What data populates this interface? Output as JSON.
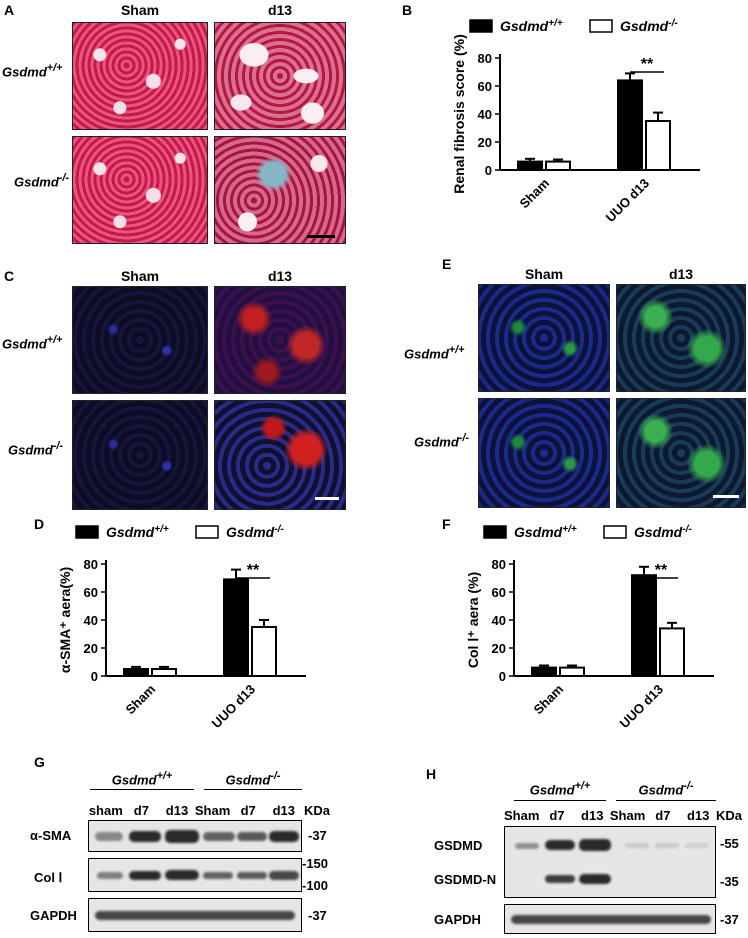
{
  "panels": {
    "A": {
      "label": "A",
      "col_headers": [
        "Sham",
        "d13"
      ],
      "row_labels": [
        "Gsdmd",
        "Gsdmd"
      ],
      "row_sup": [
        "+/+",
        "-/-"
      ]
    },
    "B": {
      "label": "B"
    },
    "C": {
      "label": "C",
      "col_headers": [
        "Sham",
        "d13"
      ],
      "row_labels": [
        "Gsdmd",
        "Gsdmd"
      ],
      "row_sup": [
        "+/+",
        "-/-"
      ]
    },
    "D": {
      "label": "D"
    },
    "E": {
      "label": "E",
      "col_headers": [
        "Sham",
        "d13"
      ],
      "row_labels": [
        "Gsdmd",
        "Gsdmd"
      ],
      "row_sup": [
        "+/+",
        "-/-"
      ]
    },
    "F": {
      "label": "F"
    },
    "G": {
      "label": "G",
      "group1": "Gsdmd",
      "group1_sup": "+/+",
      "group2": "Gsdmd",
      "group2_sup": "-/-",
      "lanes": [
        "sham",
        "d7",
        "d13",
        "Sham",
        "d7",
        "d13"
      ],
      "unit": "KDa",
      "rows": [
        {
          "name": "α-SMA",
          "mw": [
            "-37"
          ]
        },
        {
          "name": "Col  Ⅰ",
          "mw": [
            "-150",
            "-100"
          ]
        },
        {
          "name": "GAPDH",
          "mw": [
            "-37"
          ]
        }
      ]
    },
    "H": {
      "label": "H",
      "group1": "Gsdmd",
      "group1_sup": "+/+",
      "group2": "Gsdmd",
      "group2_sup": "-/-",
      "lanes": [
        "Sham",
        "d7",
        "d13",
        "Sham",
        "d7",
        "d13"
      ],
      "unit": "KDa",
      "rows": [
        {
          "name": "GSDMD",
          "mw": [
            "-55"
          ]
        },
        {
          "name": "GSDMD-N",
          "mw": [
            "-35"
          ]
        },
        {
          "name": "GAPDH",
          "mw": [
            "-37"
          ]
        }
      ]
    }
  },
  "chart_data": [
    {
      "panel": "B",
      "type": "bar",
      "categories": [
        "Sham",
        "UUO d13"
      ],
      "series": [
        {
          "name": "Gsdmd+/+",
          "values": [
            6,
            64
          ],
          "errors": [
            2,
            5
          ],
          "fill": "#000000"
        },
        {
          "name": "Gsdmd-/-",
          "values": [
            6,
            35
          ],
          "errors": [
            1.5,
            6
          ],
          "fill": "#ffffff"
        }
      ],
      "ylabel": "Renal fibrosis score (%)",
      "ylim": [
        0,
        80
      ],
      "yticks": [
        0,
        20,
        40,
        60,
        80
      ],
      "significance": "**",
      "legend": "top"
    },
    {
      "panel": "D",
      "type": "bar",
      "categories": [
        "Sham",
        "UUO d13"
      ],
      "series": [
        {
          "name": "Gsdmd+/+",
          "values": [
            5,
            69
          ],
          "errors": [
            1.5,
            7
          ],
          "fill": "#000000"
        },
        {
          "name": "Gsdmd-/-",
          "values": [
            5,
            35
          ],
          "errors": [
            1.5,
            5
          ],
          "fill": "#ffffff"
        }
      ],
      "ylabel": "α-SMA⁺ aera(%)",
      "ylim": [
        0,
        80
      ],
      "yticks": [
        0,
        20,
        40,
        60,
        80
      ],
      "significance": "**",
      "legend": "top"
    },
    {
      "panel": "F",
      "type": "bar",
      "categories": [
        "Sham",
        "UUO d13"
      ],
      "series": [
        {
          "name": "Gsdmd+/+",
          "values": [
            6,
            72
          ],
          "errors": [
            1.5,
            6
          ],
          "fill": "#000000"
        },
        {
          "name": "Gsdmd-/-",
          "values": [
            6,
            34
          ],
          "errors": [
            1.5,
            4
          ],
          "fill": "#ffffff"
        }
      ],
      "ylabel": "Col Ⅰ⁺ aera (%)",
      "ylim": [
        0,
        80
      ],
      "yticks": [
        0,
        20,
        40,
        60,
        80
      ],
      "significance": "**",
      "legend": "top"
    }
  ]
}
